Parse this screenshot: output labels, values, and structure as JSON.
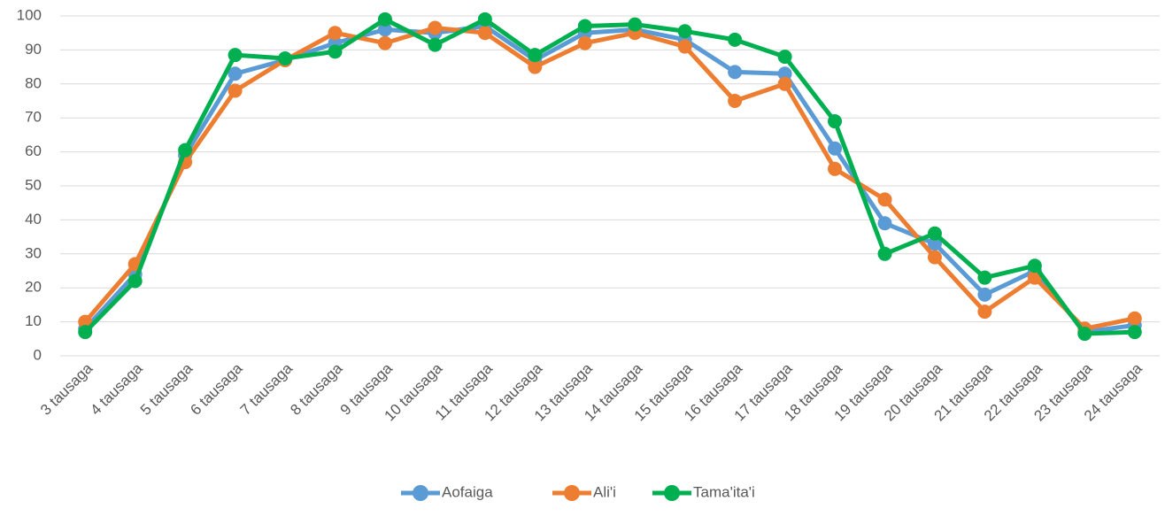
{
  "chart_data": {
    "type": "line",
    "categories": [
      "3 tausaga",
      "4 tausaga",
      "5 tausaga",
      "6 tausaga",
      "7 tausaga",
      "8 tausaga",
      "9 tausaga",
      "10 tausaga",
      "11 tausaga",
      "12 tausaga",
      "13 tausaga",
      "14 tausaga",
      "15 tausaga",
      "16 tausaga",
      "17 tausaga",
      "18 tausaga",
      "19 tausaga",
      "20 tausaga",
      "21 tausaga",
      "22 tausaga",
      "23 tausaga",
      "24 tausaga"
    ],
    "series": [
      {
        "name": "Aofaiga",
        "color": "#5b9bd5",
        "values": [
          8,
          24,
          59,
          83,
          87,
          92,
          96,
          95,
          97,
          87,
          95,
          96,
          93,
          83.5,
          83,
          61,
          39,
          33,
          18,
          25,
          7,
          9
        ]
      },
      {
        "name": "Ali'i",
        "color": "#ed7d31",
        "values": [
          10,
          27,
          57,
          78,
          87,
          95,
          92,
          96.5,
          95,
          85,
          92,
          95,
          91,
          75,
          80,
          55,
          46,
          29,
          13,
          23,
          8,
          11
        ]
      },
      {
        "name": "Tama'ita'i",
        "color": "#00b050",
        "values": [
          7,
          22,
          60.5,
          88.5,
          87.5,
          89.5,
          99,
          91.5,
          99,
          88.5,
          97,
          97.5,
          95.5,
          93,
          88,
          69,
          30,
          36,
          23,
          26.5,
          6.5,
          7
        ]
      }
    ],
    "ylim": [
      0,
      100
    ],
    "yticks": [
      0,
      10,
      20,
      30,
      40,
      50,
      60,
      70,
      80,
      90,
      100
    ],
    "grid": true,
    "legend": "bottom"
  }
}
